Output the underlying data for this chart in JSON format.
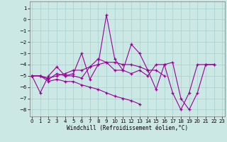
{
  "background_color": "#cce8e5",
  "grid_color": "#aad4d0",
  "line_color": "#990099",
  "xlim": [
    -0.3,
    23.3
  ],
  "ylim": [
    -8.6,
    1.6
  ],
  "yticks": [
    1,
    0,
    -1,
    -2,
    -3,
    -4,
    -5,
    -6,
    -7,
    -8
  ],
  "xticks": [
    0,
    1,
    2,
    3,
    4,
    5,
    6,
    7,
    8,
    9,
    10,
    11,
    12,
    13,
    14,
    15,
    16,
    17,
    18,
    19,
    20,
    21,
    22,
    23
  ],
  "xlabel": "Windchill (Refroidissement éolien,°C)",
  "actual_lines": [
    {
      "x": [
        0,
        1,
        2,
        3,
        4,
        5,
        6,
        7,
        8,
        9,
        10,
        11,
        12,
        13,
        14,
        15,
        16,
        17,
        18,
        19,
        20,
        21,
        22
      ],
      "y": [
        -5,
        -6.5,
        -5,
        -4.2,
        -5,
        -4.8,
        -3,
        -5.3,
        -4,
        0.4,
        -3.5,
        -4.5,
        -2.2,
        -3,
        -4.5,
        -6.2,
        -4,
        -3.8,
        -7,
        -8,
        -6.5,
        -4,
        -4
      ]
    },
    {
      "x": [
        0,
        1,
        2,
        3,
        4,
        5,
        6,
        7,
        8,
        9,
        10,
        11,
        12,
        13,
        14,
        15,
        16,
        17,
        18,
        19,
        20,
        21,
        22
      ],
      "y": [
        -5,
        -5,
        -5.3,
        -4.8,
        -5,
        -5,
        -5.2,
        -4.2,
        -3.5,
        -3.8,
        -4.5,
        -4.5,
        -4.8,
        -4.5,
        -5,
        -4,
        -4,
        -6.5,
        -8,
        -6.5,
        -4,
        -4,
        -4
      ]
    },
    {
      "x": [
        0,
        1,
        2,
        3,
        4,
        5,
        6,
        7,
        8,
        9,
        10,
        11,
        12,
        13
      ],
      "y": [
        -5,
        -5,
        -5.5,
        -5.3,
        -5.5,
        -5.5,
        -5.8,
        -6,
        -6.2,
        -6.5,
        -6.8,
        -7,
        -7.2,
        -7.5
      ]
    },
    {
      "x": [
        0,
        1,
        2,
        3,
        4,
        5,
        6,
        7,
        8,
        9,
        10,
        11,
        12,
        13,
        14,
        15,
        16
      ],
      "y": [
        -5,
        -5,
        -5.2,
        -5,
        -4.8,
        -4.5,
        -4.5,
        -4.2,
        -4,
        -3.8,
        -3.8,
        -4,
        -4,
        -4.2,
        -4.5,
        -4.5,
        -5
      ]
    }
  ]
}
